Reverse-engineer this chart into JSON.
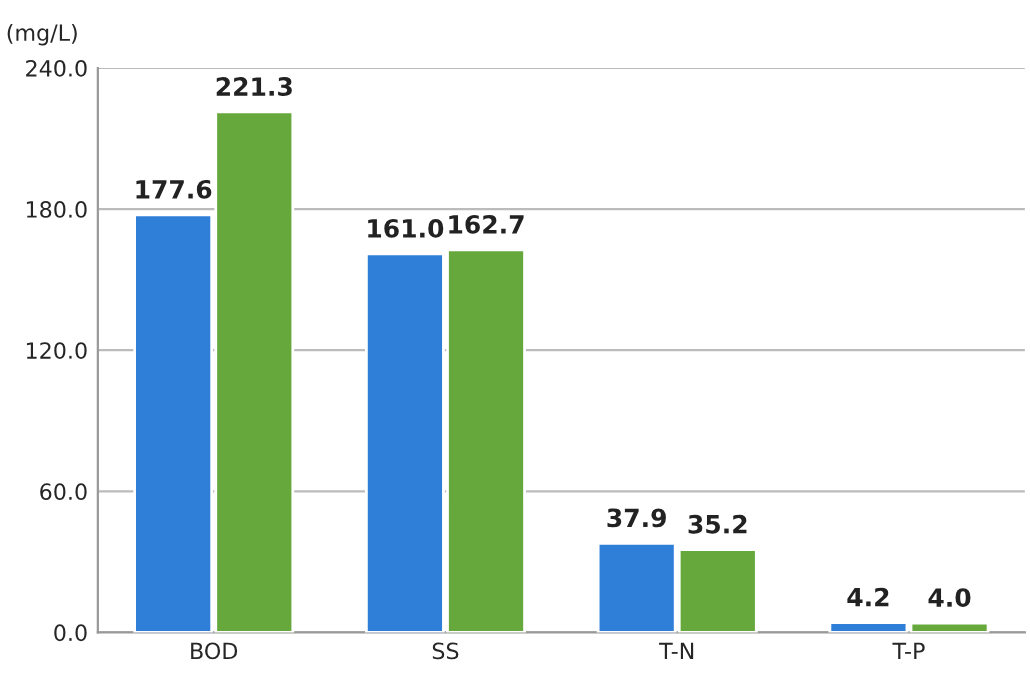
{
  "chart_data": {
    "type": "bar",
    "ylabel": "(mg/L)",
    "categories": [
      "BOD",
      "SS",
      "T-N",
      "T-P"
    ],
    "series": [
      {
        "color": "#2f7fd9",
        "values": [
          177.6,
          161.0,
          37.9,
          4.2
        ],
        "value_labels": [
          "177.6",
          "161.0",
          "37.9",
          "4.2"
        ]
      },
      {
        "color": "#66a83c",
        "values": [
          221.3,
          162.7,
          35.2,
          4.0
        ],
        "value_labels": [
          "221.3",
          "162.7",
          "35.2",
          "4.0"
        ]
      }
    ],
    "ylim": [
      0,
      240
    ],
    "yticks": [
      {
        "value": 0,
        "label": "0.0"
      },
      {
        "value": 60,
        "label": "60.0"
      },
      {
        "value": 120,
        "label": "120.0"
      },
      {
        "value": 180,
        "label": "180.0"
      },
      {
        "value": 240,
        "label": "240.0"
      }
    ],
    "grid": "y",
    "legend": false
  }
}
